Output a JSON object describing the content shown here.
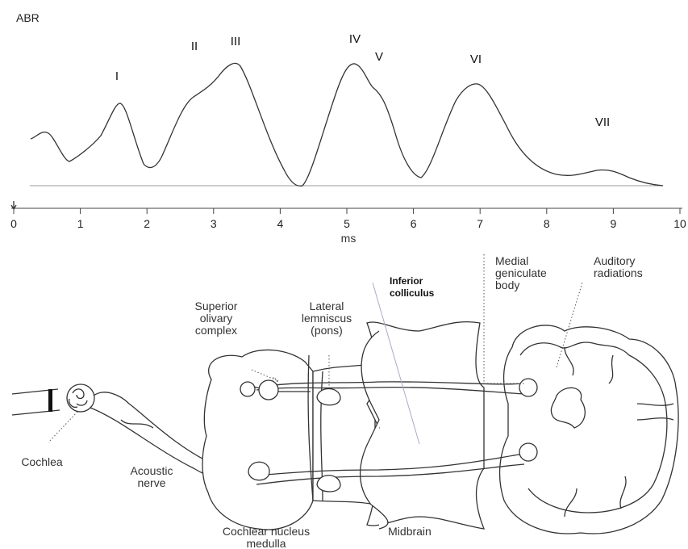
{
  "title": "ABR",
  "peaks": [
    "I",
    "II",
    "III",
    "IV",
    "V",
    "VI",
    "VII"
  ],
  "axis": {
    "ticks": [
      0,
      1,
      2,
      3,
      4,
      5,
      6,
      7,
      8,
      9,
      10
    ],
    "label": "ms"
  },
  "labels": [
    {
      "lines": [
        "Medial",
        "geniculate",
        "body"
      ]
    },
    {
      "lines": [
        "Auditory",
        "radiations"
      ]
    },
    {
      "lines": [
        "Inferior",
        "colliculus"
      ]
    },
    {
      "lines": [
        "Superior",
        "olivary",
        "complex"
      ]
    },
    {
      "lines": [
        "Lateral",
        "lemniscus",
        "(pons)"
      ]
    },
    {
      "lines": [
        "Cochlea"
      ]
    },
    {
      "lines": [
        "Acoustic",
        "nerve"
      ]
    },
    {
      "lines": [
        "Midbrain"
      ]
    },
    {
      "lines": [
        "Cochlear nucleus",
        "medulla"
      ]
    }
  ]
}
